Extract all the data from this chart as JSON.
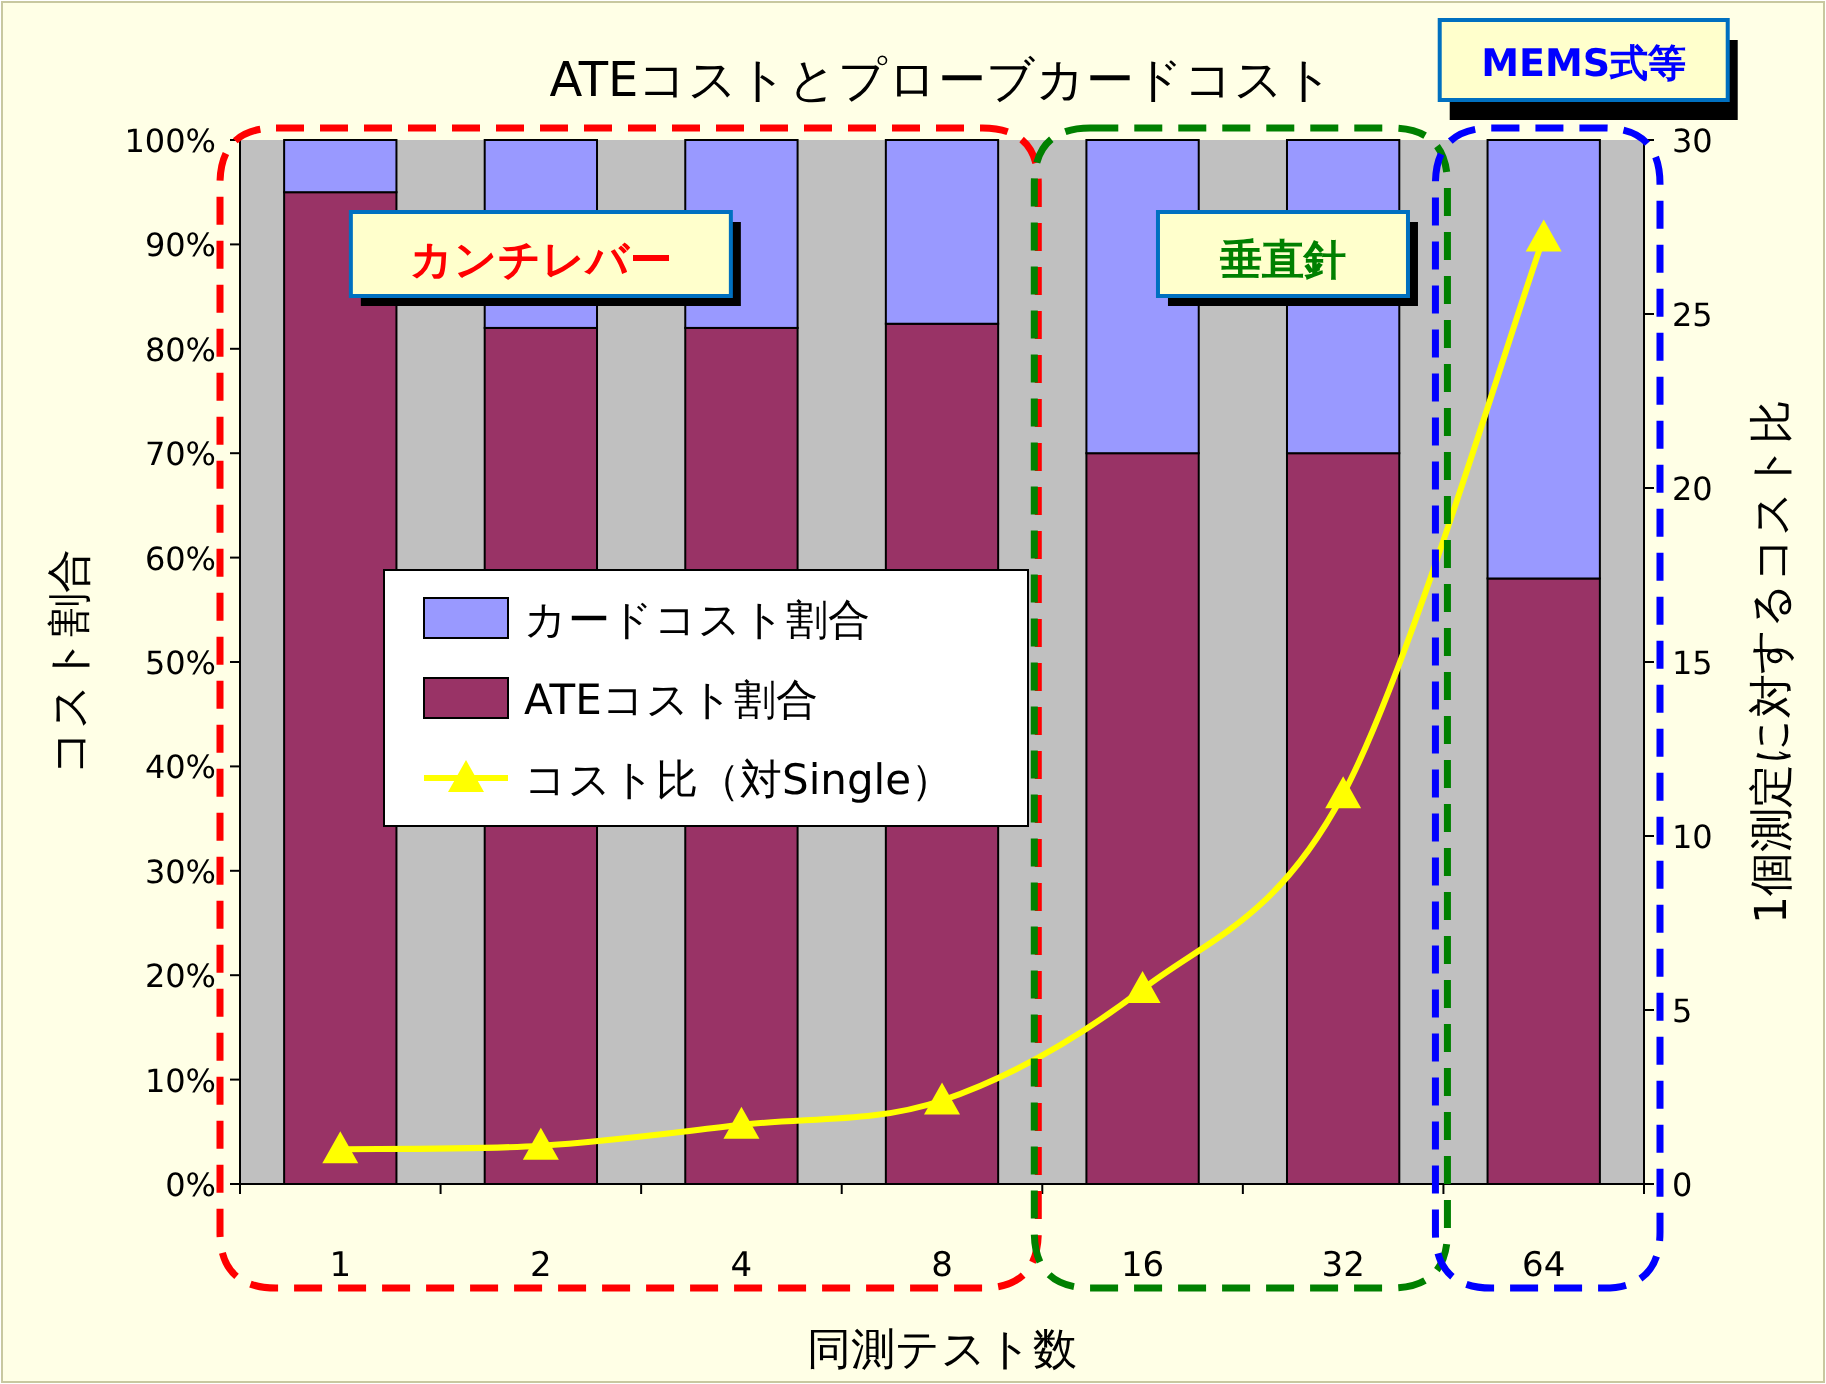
{
  "chart_data": {
    "type": "bar",
    "title": "ATEコストとプローブカードコスト",
    "xlabel": "同測テスト数",
    "ylabel": "コスト割合",
    "y2label": "1個測定に対するコスト比",
    "categories": [
      "1",
      "2",
      "4",
      "8",
      "16",
      "32",
      "64"
    ],
    "stacked": true,
    "legend": "left",
    "grid": false,
    "series": [
      {
        "name": "ATEコスト割合",
        "color": "#993366",
        "values": [
          95,
          82,
          82,
          82.4,
          70,
          70,
          58
        ]
      },
      {
        "name": "カードコスト割合",
        "color": "#9999ff",
        "values": [
          5,
          18,
          18,
          17.6,
          30,
          30,
          42
        ]
      },
      {
        "name": "コスト比（対Single）",
        "type": "line",
        "axis": "y2",
        "color": "#ffff00",
        "marker": "triangle",
        "values": [
          1.0,
          1.1,
          1.7,
          2.4,
          5.6,
          11.2,
          27.2
        ]
      }
    ],
    "ylim": [
      0,
      100
    ],
    "yticks": [
      {
        "value": 0,
        "label": "0%"
      },
      {
        "value": 10,
        "label": "10%"
      },
      {
        "value": 20,
        "label": "20%"
      },
      {
        "value": 30,
        "label": "30%"
      },
      {
        "value": 40,
        "label": "40%"
      },
      {
        "value": 50,
        "label": "50%"
      },
      {
        "value": 60,
        "label": "60%"
      },
      {
        "value": 70,
        "label": "70%"
      },
      {
        "value": 80,
        "label": "80%"
      },
      {
        "value": 90,
        "label": "90%"
      },
      {
        "value": 100,
        "label": "100%"
      }
    ],
    "y2lim": [
      0,
      30
    ],
    "y2ticks": [
      0,
      5,
      10,
      15,
      20,
      25,
      30
    ],
    "annotations": [
      "カンチレバー",
      "垂直針",
      "MEMS式等"
    ]
  }
}
